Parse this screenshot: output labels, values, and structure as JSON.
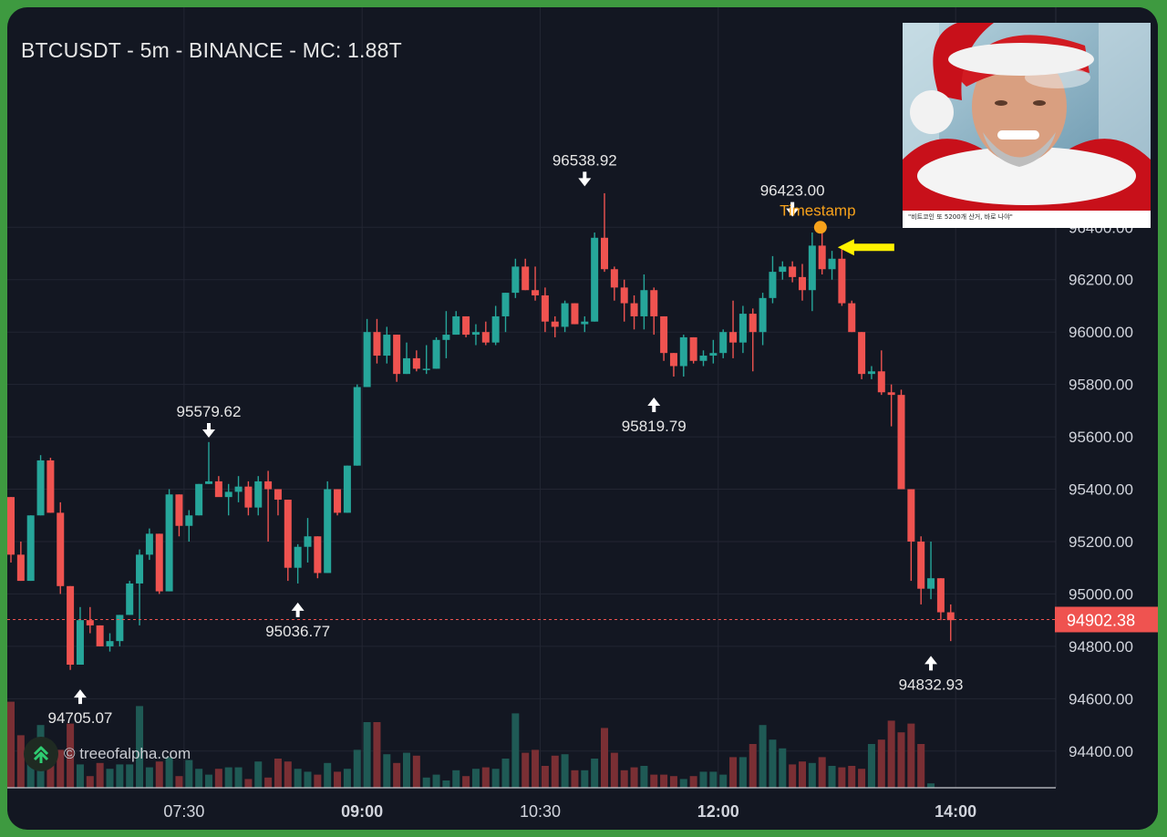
{
  "header": {
    "title": "BTCUSDT - 5m - BINANCE - MC: 1.88T"
  },
  "branding": {
    "watermark": "© treeofalpha.com"
  },
  "photo": {
    "caption": "\"비트코인 또 5200개 산거, 바로 나야\""
  },
  "colors": {
    "up": "#26a69a",
    "down": "#ef5350",
    "background": "#131722",
    "grid": "#232633",
    "price_line": "#ef5350",
    "timestamp": "#f7a21b",
    "arrow": "#fff200"
  },
  "chart_data": {
    "type": "candlestick",
    "symbol": "BTCUSDT",
    "interval": "5m",
    "exchange": "BINANCE",
    "x_tick_labels": [
      "07:30",
      "09:00",
      "10:30",
      "12:00",
      "14:00"
    ],
    "y_tick_labels": [
      "94400.00",
      "94600.00",
      "94800.00",
      "95000.00",
      "95200.00",
      "95400.00",
      "95600.00",
      "95800.00",
      "96000.00",
      "96200.00",
      "96400.00"
    ],
    "ylim": [
      94260,
      97240
    ],
    "grid": true,
    "current_price": "94902.38",
    "annotations": [
      {
        "label": "94705.07",
        "bar": 7,
        "price": 94705.07,
        "type": "low"
      },
      {
        "label": "95579.62",
        "bar": 20,
        "price": 95579.62,
        "type": "high"
      },
      {
        "label": "95036.77",
        "bar": 29,
        "price": 95036.77,
        "type": "low"
      },
      {
        "label": "96538.92",
        "bar": 58,
        "price": 96538.92,
        "type": "high"
      },
      {
        "label": "95819.79",
        "bar": 65,
        "price": 95819.79,
        "type": "low"
      },
      {
        "label": "96423.00",
        "bar": 79,
        "price": 96423.0,
        "type": "high"
      },
      {
        "label": "94832.93",
        "bar": 93,
        "price": 94832.93,
        "type": "low"
      }
    ],
    "timestamp_marker": {
      "label": "Timestamp",
      "bar": 81,
      "price": 96400
    },
    "candles": [
      [
        95370,
        95370,
        95120,
        95150
      ],
      [
        95150,
        95200,
        95050,
        95050
      ],
      [
        95050,
        95300,
        95050,
        95300
      ],
      [
        95300,
        95530,
        95300,
        95510
      ],
      [
        95510,
        95520,
        95310,
        95310
      ],
      [
        95310,
        95350,
        95000,
        95030
      ],
      [
        95030,
        95030,
        94710,
        94730
      ],
      [
        94730,
        94950,
        94730,
        94900
      ],
      [
        94900,
        94950,
        94850,
        94880
      ],
      [
        94880,
        94880,
        94800,
        94800
      ],
      [
        94800,
        94850,
        94780,
        94820
      ],
      [
        94820,
        94920,
        94800,
        94920
      ],
      [
        94920,
        95050,
        94920,
        95040
      ],
      [
        95040,
        95170,
        94880,
        95150
      ],
      [
        95150,
        95250,
        95130,
        95230
      ],
      [
        95230,
        95230,
        95000,
        95010
      ],
      [
        95010,
        95400,
        95010,
        95380
      ],
      [
        95380,
        95380,
        95220,
        95260
      ],
      [
        95260,
        95320,
        95200,
        95300
      ],
      [
        95300,
        95420,
        95300,
        95420
      ],
      [
        95420,
        95580,
        95420,
        95430
      ],
      [
        95430,
        95450,
        95380,
        95370
      ],
      [
        95370,
        95420,
        95300,
        95390
      ],
      [
        95390,
        95450,
        95350,
        95410
      ],
      [
        95410,
        95430,
        95300,
        95330
      ],
      [
        95330,
        95450,
        95300,
        95430
      ],
      [
        95430,
        95470,
        95200,
        95400
      ],
      [
        95400,
        95400,
        95300,
        95360
      ],
      [
        95360,
        95360,
        95050,
        95100
      ],
      [
        95100,
        95190,
        95040,
        95180
      ],
      [
        95180,
        95290,
        95120,
        95220
      ],
      [
        95220,
        95220,
        95060,
        95080
      ],
      [
        95080,
        95430,
        95080,
        95400
      ],
      [
        95400,
        95400,
        95300,
        95310
      ],
      [
        95310,
        95490,
        95310,
        95490
      ],
      [
        95490,
        95800,
        95490,
        95790
      ],
      [
        95790,
        96050,
        95790,
        96000
      ],
      [
        96000,
        96050,
        95880,
        95910
      ],
      [
        95910,
        96020,
        95880,
        95990
      ],
      [
        95990,
        95990,
        95810,
        95840
      ],
      [
        95840,
        95960,
        95840,
        95900
      ],
      [
        95900,
        95930,
        95850,
        95860
      ],
      [
        95860,
        95950,
        95840,
        95860
      ],
      [
        95860,
        95980,
        95860,
        95970
      ],
      [
        95970,
        96080,
        95900,
        95990
      ],
      [
        95990,
        96080,
        95990,
        96060
      ],
      [
        96060,
        96060,
        95980,
        95990
      ],
      [
        95990,
        96030,
        95950,
        96000
      ],
      [
        96000,
        96040,
        95950,
        95960
      ],
      [
        95960,
        96100,
        95950,
        96060
      ],
      [
        96060,
        96150,
        96000,
        96150
      ],
      [
        96150,
        96280,
        96130,
        96250
      ],
      [
        96250,
        96280,
        96160,
        96160
      ],
      [
        96160,
        96250,
        96120,
        96140
      ],
      [
        96140,
        96170,
        96000,
        96040
      ],
      [
        96040,
        96060,
        95980,
        96020
      ],
      [
        96020,
        96120,
        96000,
        96110
      ],
      [
        96110,
        96110,
        96030,
        96030
      ],
      [
        96030,
        96060,
        96000,
        96040
      ],
      [
        96040,
        96380,
        96040,
        96360
      ],
      [
        96360,
        96530,
        96230,
        96240
      ],
      [
        96240,
        96250,
        96120,
        96170
      ],
      [
        96170,
        96200,
        96040,
        96110
      ],
      [
        96110,
        96140,
        96010,
        96060
      ],
      [
        96060,
        96220,
        96010,
        96160
      ],
      [
        96160,
        96170,
        95990,
        96060
      ],
      [
        96060,
        96060,
        95890,
        95920
      ],
      [
        95920,
        95920,
        95830,
        95870
      ],
      [
        95870,
        95990,
        95830,
        95980
      ],
      [
        95980,
        95980,
        95880,
        95890
      ],
      [
        95890,
        95930,
        95870,
        95910
      ],
      [
        95910,
        95970,
        95880,
        95920
      ],
      [
        95920,
        96010,
        95900,
        96000
      ],
      [
        96000,
        96120,
        95900,
        95960
      ],
      [
        95960,
        96100,
        95920,
        96070
      ],
      [
        96070,
        96090,
        95850,
        96000
      ],
      [
        96000,
        96150,
        95950,
        96130
      ],
      [
        96130,
        96290,
        96110,
        96230
      ],
      [
        96230,
        96270,
        96200,
        96250
      ],
      [
        96250,
        96270,
        96190,
        96210
      ],
      [
        96210,
        96260,
        96120,
        96160
      ],
      [
        96160,
        96380,
        96080,
        96330
      ],
      [
        96330,
        96400,
        96220,
        96240
      ],
      [
        96240,
        96310,
        96200,
        96280
      ],
      [
        96280,
        96330,
        96100,
        96110
      ],
      [
        96110,
        96120,
        96000,
        96000
      ],
      [
        96000,
        96000,
        95820,
        95840
      ],
      [
        95840,
        95870,
        95820,
        95850
      ],
      [
        95850,
        95930,
        95760,
        95770
      ],
      [
        95770,
        95800,
        95640,
        95760
      ],
      [
        95760,
        95780,
        95400,
        95400
      ],
      [
        95400,
        95400,
        95050,
        95200
      ],
      [
        95200,
        95220,
        94960,
        95020
      ],
      [
        95020,
        95200,
        94980,
        95060
      ],
      [
        95060,
        95060,
        94900,
        94930
      ],
      [
        94930,
        94960,
        94820,
        94900
      ]
    ],
    "volume_fraction": [
      0.59,
      0.36,
      0.21,
      0.43,
      0.23,
      0.26,
      0.44,
      0.16,
      0.08,
      0.17,
      0.13,
      0.16,
      0.16,
      0.56,
      0.14,
      0.18,
      0.21,
      0.08,
      0.19,
      0.13,
      0.09,
      0.13,
      0.14,
      0.14,
      0.06,
      0.18,
      0.07,
      0.2,
      0.18,
      0.13,
      0.11,
      0.09,
      0.17,
      0.11,
      0.13,
      0.26,
      0.45,
      0.45,
      0.23,
      0.17,
      0.24,
      0.22,
      0.07,
      0.09,
      0.05,
      0.12,
      0.08,
      0.13,
      0.14,
      0.13,
      0.2,
      0.51,
      0.24,
      0.26,
      0.15,
      0.22,
      0.23,
      0.12,
      0.12,
      0.2,
      0.41,
      0.24,
      0.12,
      0.14,
      0.15,
      0.09,
      0.09,
      0.08,
      0.06,
      0.08,
      0.11,
      0.11,
      0.09,
      0.21,
      0.21,
      0.3,
      0.43,
      0.33,
      0.27,
      0.16,
      0.18,
      0.17,
      0.21,
      0.15,
      0.14,
      0.15,
      0.13,
      0.3,
      0.33,
      0.46,
      0.38,
      0.44,
      0.3,
      0.03
    ]
  }
}
